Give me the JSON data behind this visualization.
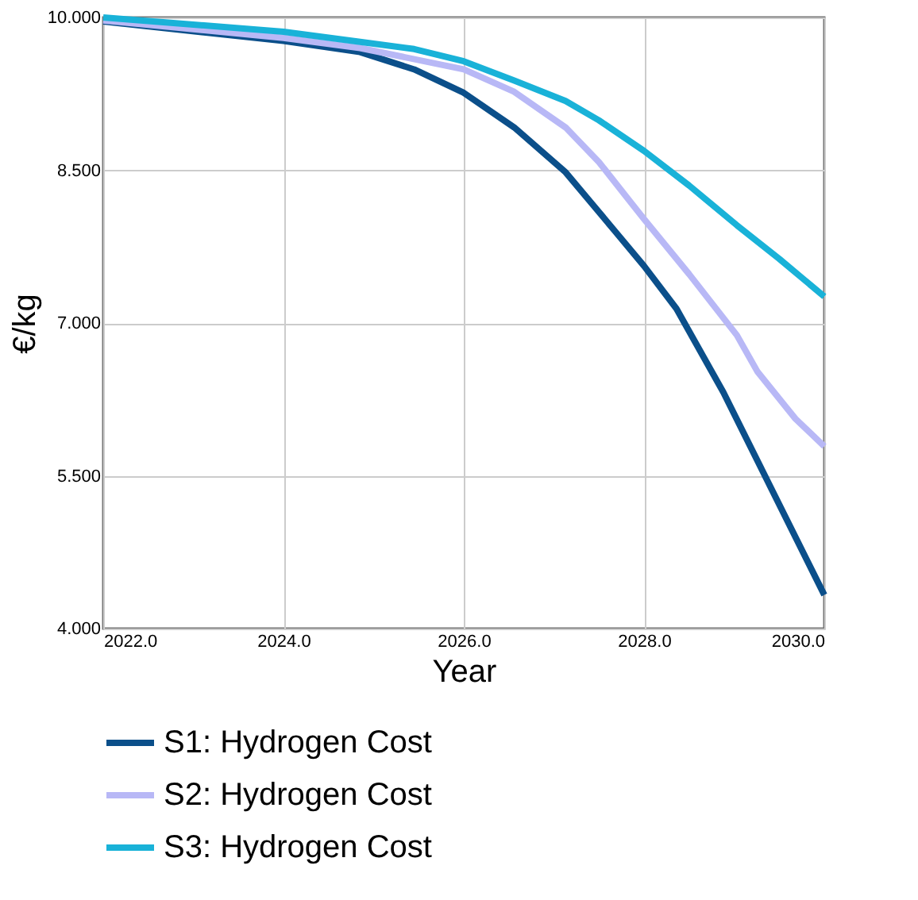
{
  "chart_data": {
    "type": "line",
    "xlabel": "Year",
    "ylabel": "€/kg",
    "xlim": [
      2022,
      2030
    ],
    "xticks": [
      {
        "value": 2022,
        "label": "2022.0"
      },
      {
        "value": 2024,
        "label": "2024.0"
      },
      {
        "value": 2026,
        "label": "2026.0"
      },
      {
        "value": 2028,
        "label": "2028.0"
      },
      {
        "value": 2030,
        "label": "2030.0"
      }
    ],
    "ylim": [
      4,
      10
    ],
    "yticks": [
      {
        "value": 4,
        "label": "4.000"
      },
      {
        "value": 5.5,
        "label": "5.500"
      },
      {
        "value": 7,
        "label": "7.000"
      },
      {
        "value": 8.5,
        "label": "8.500"
      },
      {
        "value": 10,
        "label": "10.000"
      }
    ],
    "grid": true,
    "legend": "bottom",
    "line_style": "solid",
    "marker": "none",
    "series": [
      {
        "name": "S1: Hydrogen Cost",
        "color": "#0b4f8a",
        "x": [
          2022,
          2024,
          2024.85,
          2025.45,
          2026,
          2026.56,
          2027.13,
          2027.67,
          2028,
          2028.36,
          2028.88,
          2030
        ],
        "values": [
          9.96,
          9.77,
          9.66,
          9.49,
          9.26,
          8.92,
          8.48,
          7.91,
          7.56,
          7.14,
          6.32,
          4.33
        ]
      },
      {
        "name": "S2: Hydrogen Cost",
        "color": "#b8b8f6",
        "x": [
          2022,
          2024,
          2024.85,
          2026,
          2026.56,
          2027.13,
          2027.5,
          2028,
          2028.5,
          2029.03,
          2029.26,
          2029.68,
          2030
        ],
        "values": [
          9.97,
          9.8,
          9.7,
          9.49,
          9.27,
          8.92,
          8.58,
          8.02,
          7.48,
          6.88,
          6.52,
          6.06,
          5.79
        ]
      },
      {
        "name": "S3: Hydrogen Cost",
        "color": "#19b2d8",
        "x": [
          2022,
          2024,
          2024.85,
          2025.45,
          2026,
          2026.56,
          2027.13,
          2027.5,
          2028,
          2028.5,
          2029.03,
          2029.5,
          2030
        ],
        "values": [
          10.0,
          9.86,
          9.76,
          9.69,
          9.57,
          9.38,
          9.18,
          8.99,
          8.69,
          8.35,
          7.96,
          7.63,
          7.26
        ]
      }
    ]
  }
}
